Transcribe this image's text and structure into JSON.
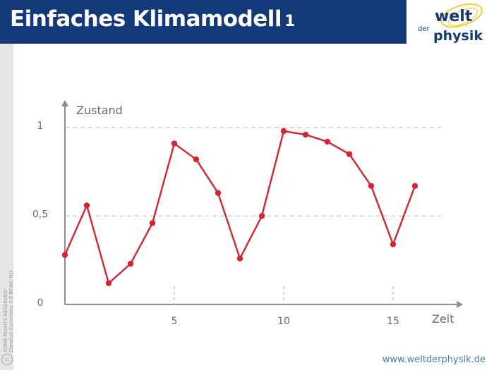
{
  "header": {
    "title": "Einfaches Klimamodell",
    "title_number": "1",
    "logo": {
      "word1": "welt",
      "word2": "der",
      "word3": "physik"
    }
  },
  "footer": {
    "url": "www.weltderphysik.de"
  },
  "license": {
    "line1": "SOME RIGHTS RESERVED",
    "line2": "Creative Commons 3.0 BY-NC-ND"
  },
  "colors": {
    "header_bg": "#14397a",
    "line": "#d42532",
    "grid": "#c8c8c8",
    "axis": "#8c8c8c",
    "logo_yellow": "#f6c200"
  },
  "chart_data": {
    "type": "line",
    "ylabel": "Zustand",
    "xlabel": "Zeit",
    "x_ticks": [
      5,
      10,
      15
    ],
    "y_ticks": [
      {
        "value": 0,
        "label": "0"
      },
      {
        "value": 0.5,
        "label": "0,5"
      },
      {
        "value": 1,
        "label": "1"
      }
    ],
    "xlim": [
      0,
      18
    ],
    "ylim": [
      0,
      1.05
    ],
    "grid": "dashed horizontal at 0,5 and 1",
    "x": [
      0,
      1,
      2,
      3,
      4,
      5,
      6,
      7,
      8,
      9,
      10,
      11,
      12,
      13,
      14,
      15,
      16
    ],
    "values": [
      0.28,
      0.56,
      0.12,
      0.23,
      0.46,
      0.91,
      0.82,
      0.63,
      0.26,
      0.5,
      0.98,
      0.96,
      0.92,
      0.85,
      0.67,
      0.34,
      0.67
    ]
  }
}
